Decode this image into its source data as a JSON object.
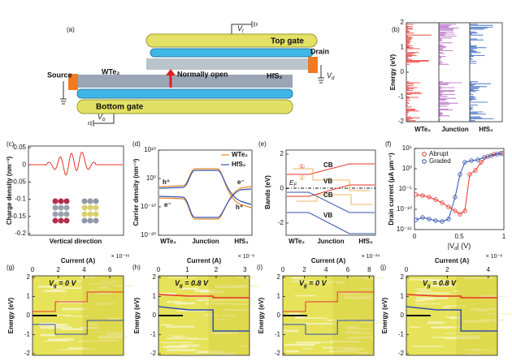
{
  "panel_a": {
    "label": "(a)",
    "top_gate": "Top gate",
    "vt": [
      "V",
      "t"
    ],
    "drain": "Drain",
    "vd": [
      "V",
      "d"
    ],
    "source": "Source",
    "wte2": "WTe₂",
    "normally_open": "Normally open",
    "hfs2": "HfS₂",
    "bottom_gate": "Bottom gate",
    "vb": [
      "V",
      "b"
    ]
  },
  "panel_b": {
    "label": "(b)",
    "y_label": "Energy (eV)",
    "yticks": [
      "2",
      "1",
      "0",
      "-1",
      "-2"
    ],
    "x_labels": [
      "WTe₂",
      "Junction",
      "HfS₂"
    ]
  },
  "panel_c": {
    "label": "(c)",
    "y_label": "Charge density (nm⁻³)",
    "yticks": [
      "0.05",
      "0",
      "-0.05",
      "-0.1",
      "-0.15",
      "-0.2"
    ],
    "x_label": "Vertical direction"
  },
  "panel_d": {
    "label": "(d)",
    "y_label": "Carrier density (nm⁻³)",
    "yticks": [
      "10¹⁰",
      "10⁰",
      "10⁻¹⁰",
      "10⁻²⁰"
    ],
    "legend": [
      "WTe₂",
      "HfS₂"
    ],
    "carriers": [
      "h⁺",
      "e⁻",
      "e⁻",
      "h⁺"
    ],
    "x_labels": [
      "WTe₂",
      "Junction",
      "HfS₂"
    ]
  },
  "panel_e": {
    "label": "(e)",
    "y_label": "Bands (eV)",
    "yticks": [
      "2",
      "0",
      "-2"
    ],
    "bands": [
      "CB",
      "VB",
      "CB",
      "VB"
    ],
    "fermi": [
      "E",
      "F"
    ],
    "markers": [
      "①",
      "②"
    ],
    "x_labels": [
      "WTe₂",
      "Junction",
      "HfS₂"
    ]
  },
  "panel_f": {
    "label": "(f)",
    "y_label": "Drain current (μA μm⁻¹)",
    "yticks": [
      "10⁵",
      "10⁰",
      "10⁻⁵",
      "10⁻¹⁰",
      "10⁻¹⁵"
    ],
    "xticks": [
      "0",
      "0.5",
      "1"
    ],
    "x_label": [
      "|V",
      "d",
      "| (V)"
    ],
    "legend": [
      "Abrupt",
      "Graded"
    ]
  },
  "panels_bottom": [
    {
      "label": "(g)",
      "x_label": "Current (A)",
      "xticks": [
        "0",
        "2",
        "4",
        "6"
      ],
      "exponent": "× 10⁻¹⁶",
      "gate": [
        "V",
        "g",
        " = 0 V"
      ],
      "yticks": [
        "2",
        "1",
        "0",
        "-1",
        "-2"
      ],
      "y_label": "Energy (eV)"
    },
    {
      "label": "(h)",
      "x_label": "Current (A)",
      "xticks": [
        "0",
        "1",
        "2",
        "3"
      ],
      "exponent": "× 10⁻⁸",
      "gate": [
        "V",
        "g",
        " = 0.8 V"
      ],
      "yticks": [
        "2",
        "1",
        "0",
        "-1",
        "-2"
      ],
      "y_label": "Energy (eV)"
    },
    {
      "label": "(i)",
      "x_label": "Current (A)",
      "xticks": [
        "0",
        "2",
        "4",
        "6",
        "8"
      ],
      "exponent": "× 10⁻²⁴",
      "gate": [
        "V",
        "g",
        " = 0 V"
      ],
      "yticks": [
        "2",
        "1",
        "0",
        "-1",
        "-2"
      ],
      "y_label": "Energy (eV)"
    },
    {
      "label": "(j)",
      "x_label": "Current (A)",
      "xticks": [
        "0",
        "2",
        "4"
      ],
      "exponent": "× 10⁻⁸",
      "gate": [
        "V",
        "g",
        " = 0.8 V"
      ],
      "yticks": [
        "2",
        "1",
        "0",
        "-1",
        "-2"
      ],
      "y_label": "Energy (eV)"
    }
  ]
}
